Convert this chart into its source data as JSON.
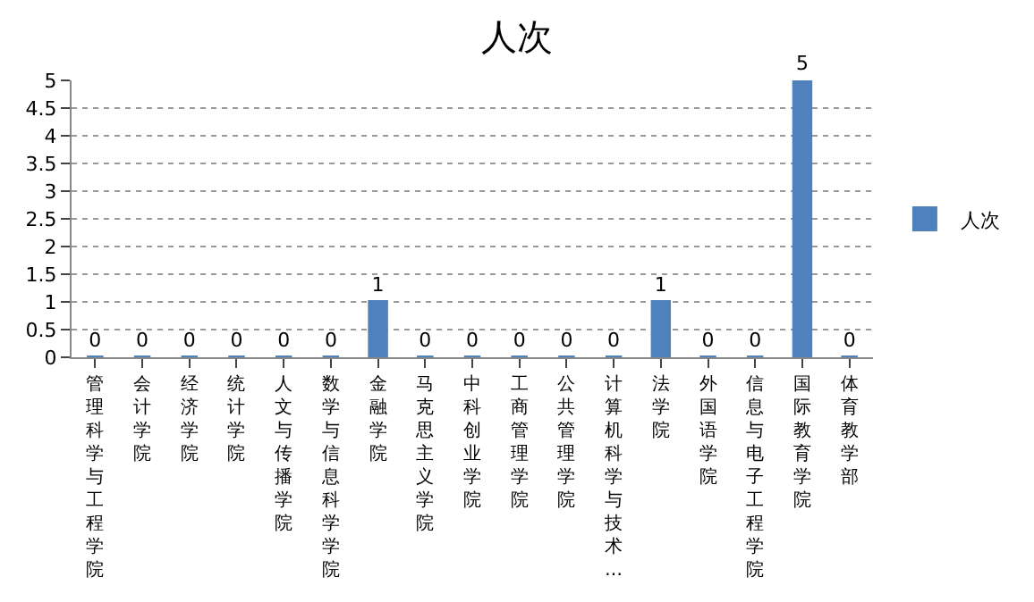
{
  "chart_data": {
    "type": "bar",
    "title": "人次",
    "categories": [
      "管理科学与工程学院",
      "会计学院",
      "经济学院",
      "统计学院",
      "人文与传播学院",
      "数学与信息科学学院",
      "金融学院",
      "马克思主义学院",
      "中科创业学院",
      "工商管理学院",
      "公共管理学院",
      "计算机科学与技术…",
      "法学院",
      "外国语学院",
      "信息与电子工程学院",
      "国际教育学院",
      "体育教学部"
    ],
    "series": [
      {
        "name": "人次",
        "color": "#4f81bd",
        "values": [
          0,
          0,
          0,
          0,
          0,
          0,
          1,
          0,
          0,
          0,
          0,
          0,
          1,
          0,
          0,
          5,
          0
        ]
      }
    ],
    "ylim": [
      0,
      5
    ],
    "yticks": [
      0,
      0.5,
      1,
      1.5,
      2,
      2.5,
      3,
      3.5,
      4,
      4.5,
      5
    ],
    "grid": "y",
    "legend": "right",
    "data_labels": true
  }
}
